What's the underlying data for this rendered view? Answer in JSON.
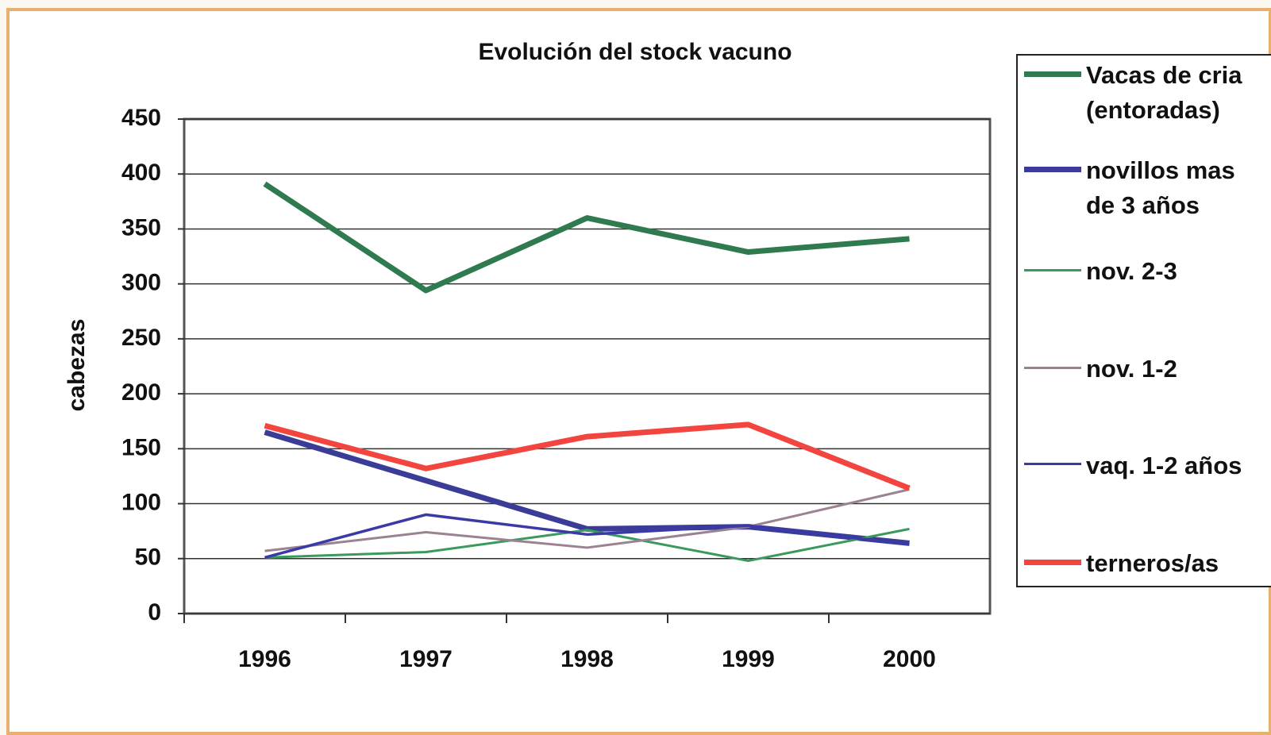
{
  "chart_data": {
    "type": "line",
    "title": "Evolución del stock vacuno",
    "y_label": "cabezas",
    "categories": [
      "1996",
      "1997",
      "1998",
      "1999",
      "2000"
    ],
    "series": [
      {
        "name": "Vacas de cria (entoradas)",
        "color": "#2f7a4e",
        "width": 7,
        "values": [
          391,
          294,
          360,
          329,
          341
        ]
      },
      {
        "name": "novillos mas de 3 años",
        "color": "#3b3b98",
        "width": 7,
        "values": [
          165,
          121,
          77,
          79,
          64
        ]
      },
      {
        "name": "nov. 2-3",
        "color": "#3a9a5c",
        "width": 3,
        "values": [
          51,
          56,
          76,
          48,
          77
        ]
      },
      {
        "name": "nov. 1-2",
        "color": "#9a8292",
        "width": 3,
        "values": [
          57,
          74,
          60,
          79,
          113
        ]
      },
      {
        "name": "vaq. 1-2 años",
        "color": "#3a3aa6",
        "width": 3.5,
        "values": [
          51,
          90,
          72,
          80,
          63
        ]
      },
      {
        "name": "terneros/as",
        "color": "#f2453f",
        "width": 7,
        "values": [
          171,
          132,
          161,
          172,
          114
        ]
      }
    ],
    "ylim": [
      0,
      450
    ],
    "yticks": [
      0,
      50,
      100,
      150,
      200,
      250,
      300,
      350,
      400,
      450
    ],
    "grid": true,
    "legend": "right"
  }
}
